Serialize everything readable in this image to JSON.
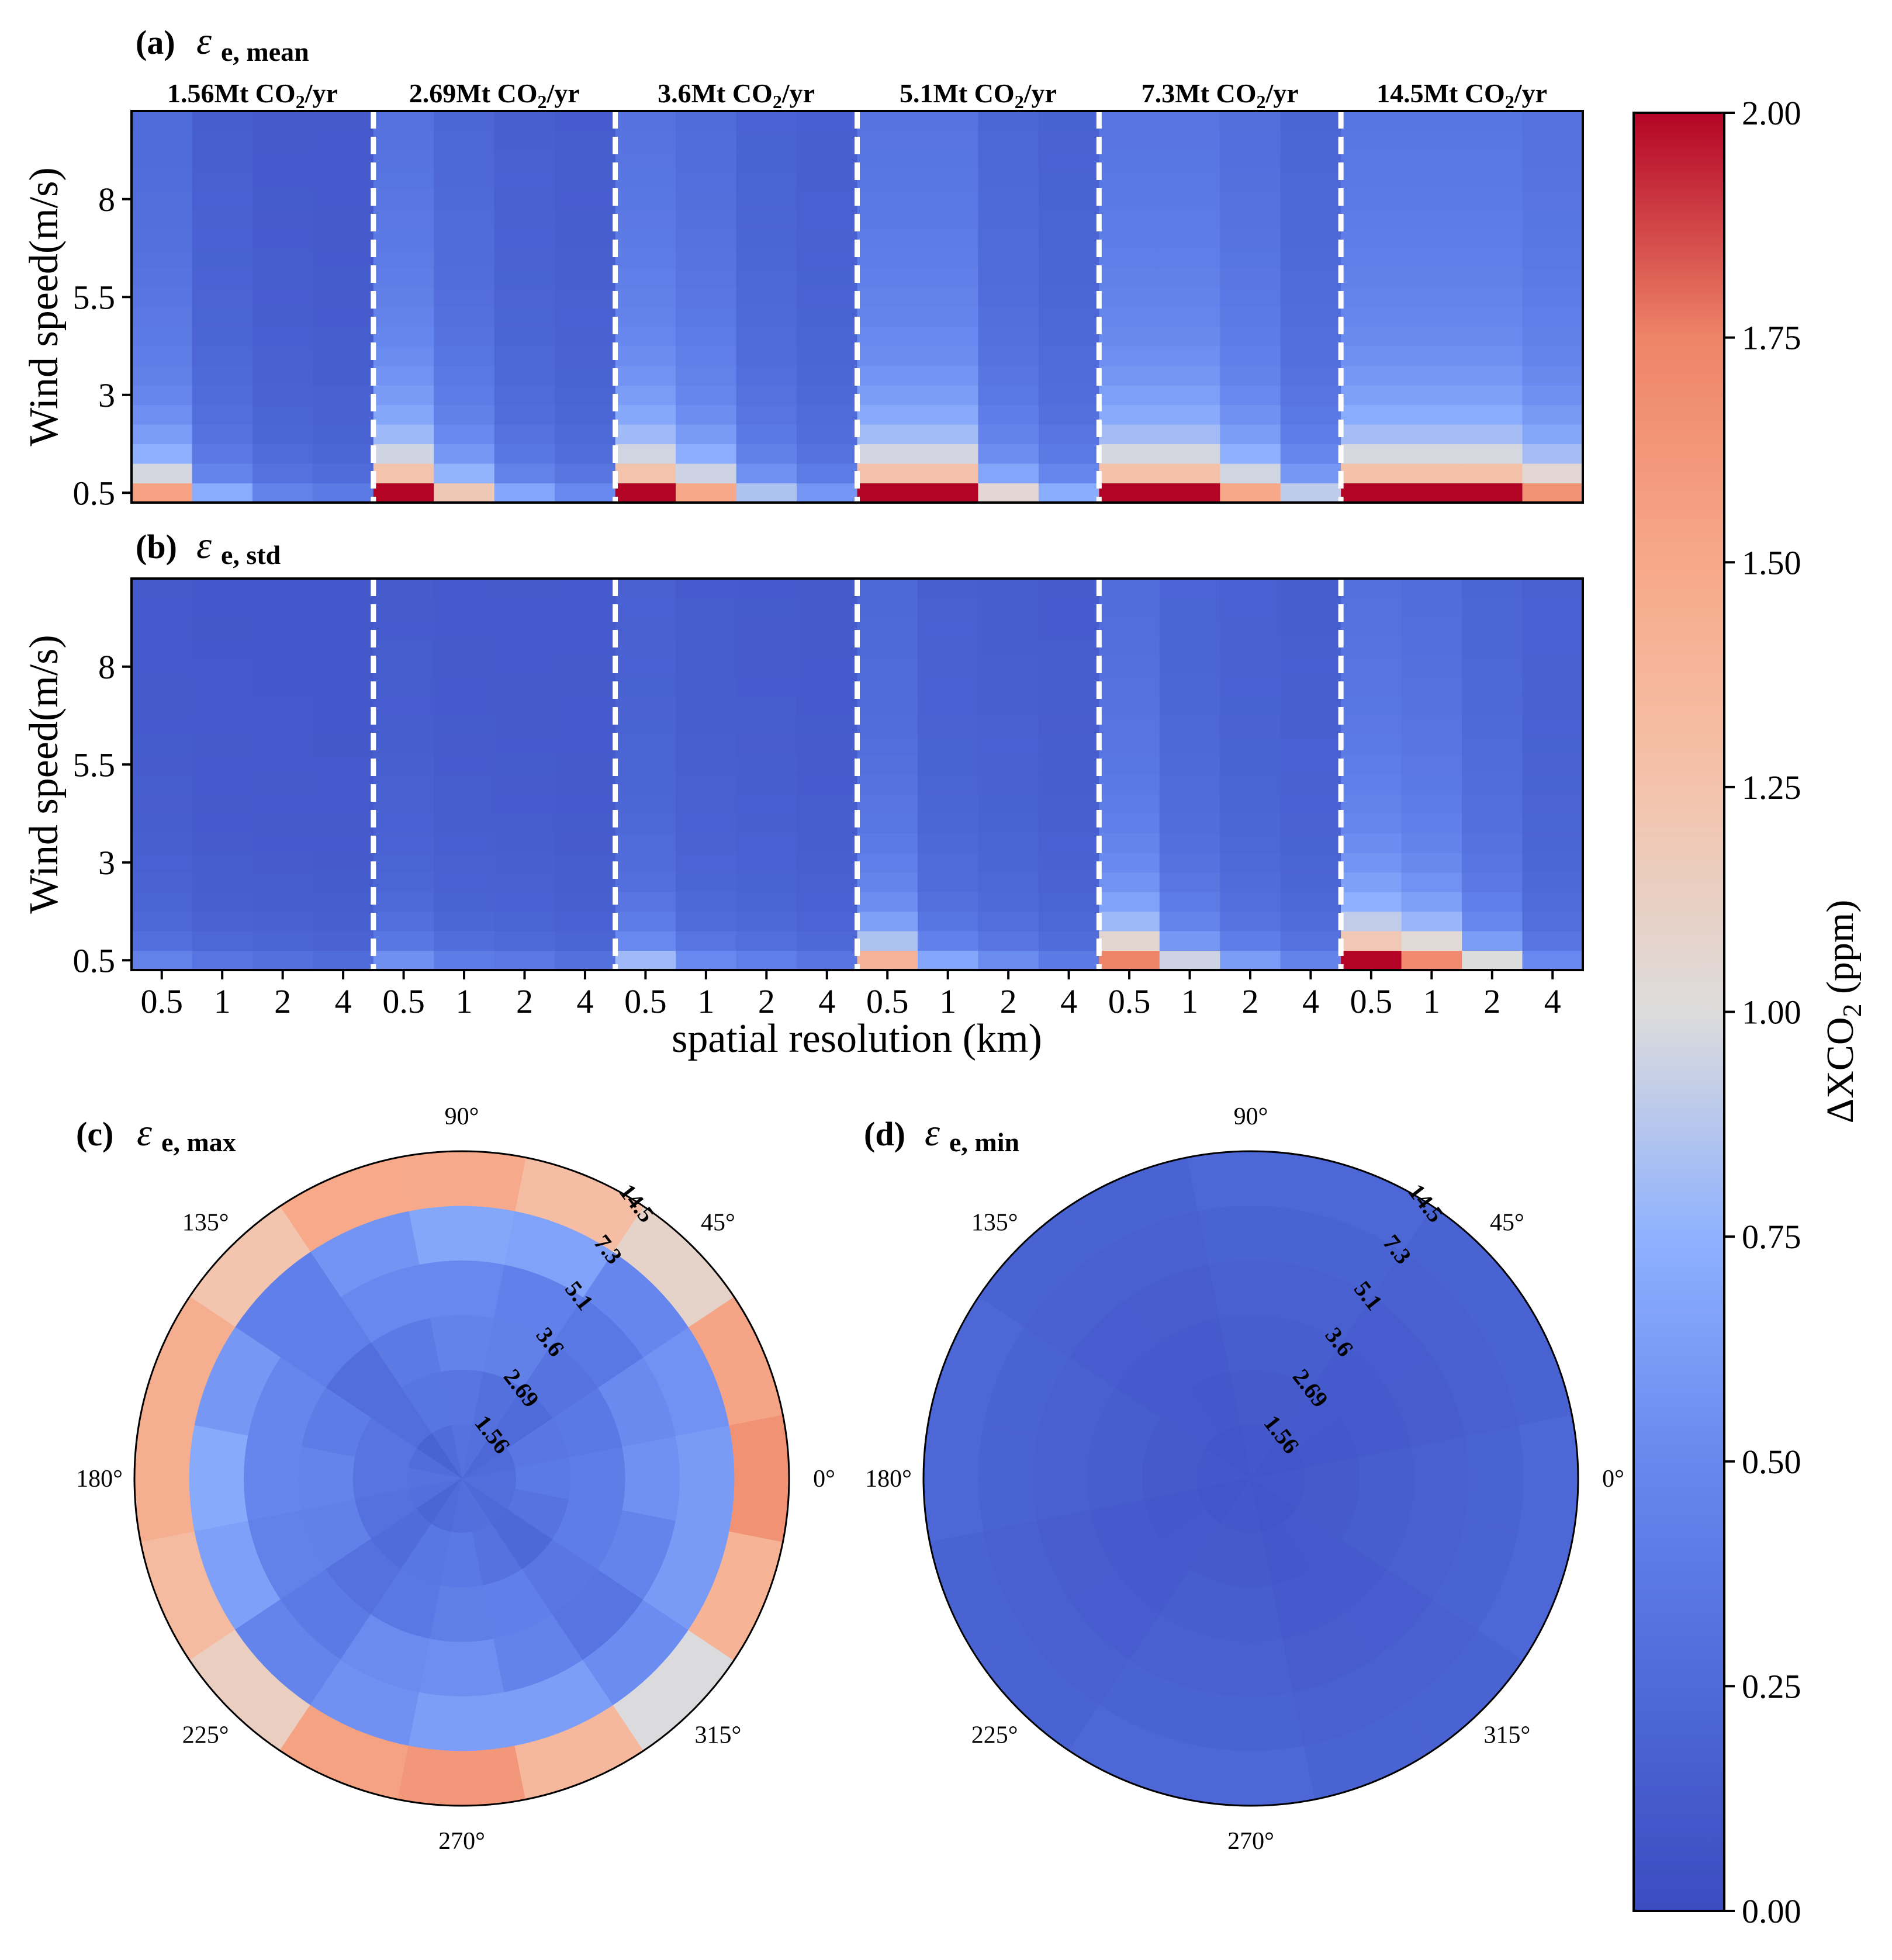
{
  "figure": {
    "panel_a_label": "(a)",
    "panel_b_label": "(b)",
    "panel_c_label": "(c)",
    "panel_d_label": "(d)",
    "epsilon": "ε",
    "sub_mean": "e, mean",
    "sub_std": "e, std",
    "sub_max": "e, max",
    "sub_min": "e, min",
    "y_axis_label": "Wind speed(m/s)",
    "x_axis_label": "spatial resolution (km)",
    "colorbar_label": "ΔXCO",
    "colorbar_label_sub": "2",
    "colorbar_label_unit": " (ppm)"
  },
  "chart_data": {
    "type": "heatmap",
    "emission_groups": [
      {
        "value": "1.56",
        "unit": "Mt CO",
        "sub": "2",
        "tail": "/yr"
      },
      {
        "value": "2.69",
        "unit": "Mt CO",
        "sub": "2",
        "tail": "/yr"
      },
      {
        "value": "3.6",
        "unit": "Mt CO",
        "sub": "2",
        "tail": "/yr"
      },
      {
        "value": "5.1",
        "unit": "Mt CO",
        "sub": "2",
        "tail": "/yr"
      },
      {
        "value": "7.3",
        "unit": "Mt CO",
        "sub": "2",
        "tail": "/yr"
      },
      {
        "value": "14.5",
        "unit": "Mt CO",
        "sub": "2",
        "tail": "/yr"
      }
    ],
    "resolutions": [
      "0.5",
      "1",
      "2",
      "4"
    ],
    "wind_ticks": [
      "0.5",
      "3",
      "5.5",
      "8"
    ],
    "wind_range": [
      0.5,
      10
    ],
    "wind_step": 0.5,
    "colorbar": {
      "range": [
        0,
        2
      ],
      "ticks": [
        "0.00",
        "0.25",
        "0.50",
        "0.75",
        "1.00",
        "1.25",
        "1.50",
        "1.75",
        "2.00"
      ],
      "colormap": "coolwarm"
    },
    "mean_at_0_5ms": [
      [
        1.55,
        0.72,
        0.45,
        0.38
      ],
      [
        2.0,
        1.2,
        0.68,
        0.5
      ],
      [
        2.0,
        1.5,
        0.85,
        0.58
      ],
      [
        2.0,
        2.0,
        1.05,
        0.72
      ],
      [
        2.0,
        2.0,
        1.5,
        0.9
      ],
      [
        2.0,
        2.0,
        2.0,
        1.65
      ]
    ],
    "std_at_0_5ms": [
      [
        0.45,
        0.33,
        0.3,
        0.26
      ],
      [
        0.55,
        0.4,
        0.36,
        0.3
      ],
      [
        0.8,
        0.5,
        0.42,
        0.33
      ],
      [
        1.4,
        0.68,
        0.52,
        0.38
      ],
      [
        1.75,
        0.95,
        0.62,
        0.45
      ],
      [
        2.0,
        1.7,
        1.0,
        0.5
      ]
    ],
    "polar": {
      "angle_ticks": [
        "0°",
        "45°",
        "90°",
        "135°",
        "180°",
        "225°",
        "270°",
        "315°"
      ],
      "radial_ticks": [
        "1.56",
        "2.69",
        "3.6",
        "5.1",
        "7.3",
        "14.5"
      ],
      "n_sectors": 16,
      "max_by_ring": [
        0.3,
        0.36,
        0.44,
        0.52,
        0.66,
        1.55
      ],
      "min_by_ring": [
        0.09,
        0.11,
        0.13,
        0.15,
        0.17,
        0.2
      ]
    }
  }
}
